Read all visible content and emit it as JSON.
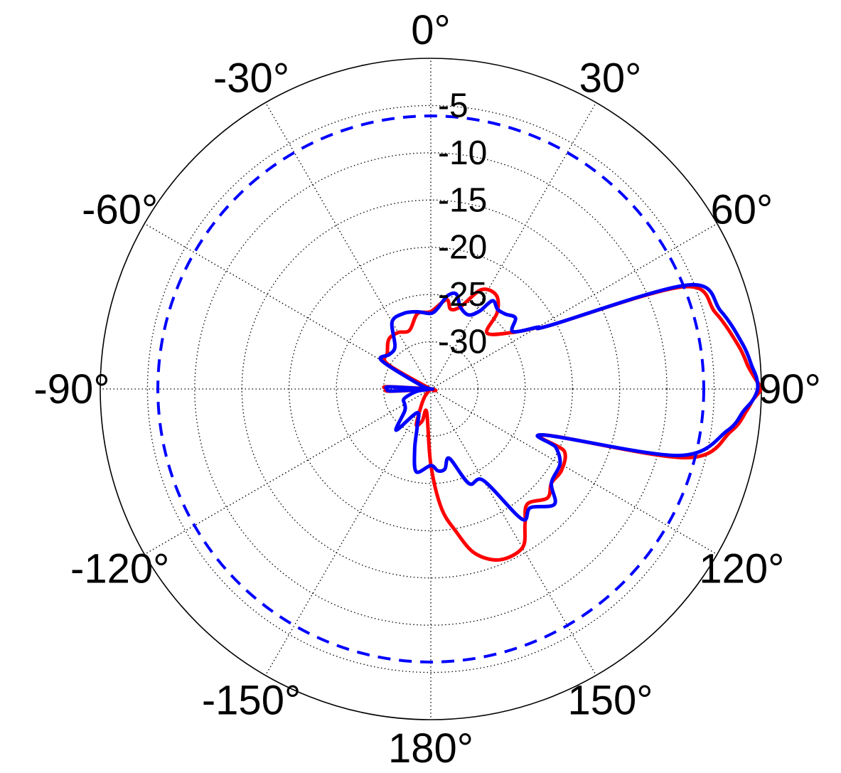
{
  "chart_data": {
    "type": "polar",
    "title": "",
    "angle_unit": "deg",
    "angle_zero": "top",
    "angle_direction": "clockwise",
    "angle_ticks": [
      "0°",
      "30°",
      "60°",
      "90°",
      "120°",
      "150°",
      "180°",
      "-150°",
      "-120°",
      "-90°",
      "-60°",
      "-30°"
    ],
    "angle_tick_values": [
      0,
      30,
      60,
      90,
      120,
      150,
      180,
      -150,
      -120,
      -90,
      -60,
      -30
    ],
    "radial_range": [
      -35,
      0
    ],
    "radial_ticks": [
      -35,
      -30,
      -25,
      -20,
      -15,
      -10,
      -5,
      0
    ],
    "radial_tick_labels": [
      "-5",
      "-10",
      "-15",
      "-20",
      "-25",
      "-30"
    ],
    "radial_tick_label_values": [
      -5,
      -10,
      -15,
      -20,
      -25,
      -30
    ],
    "grid": true,
    "grid_style": "dotted",
    "legend": "none",
    "series": [
      {
        "color": "#ff0000",
        "style": "solid",
        "theta": [
          0,
          10,
          14,
          20,
          27,
          35,
          41,
          45,
          55,
          60,
          62,
          68,
          75,
          82,
          86,
          88,
          90,
          92,
          94,
          98,
          105,
          112,
          115,
          122,
          128,
          133,
          140,
          145,
          150,
          158,
          165,
          170,
          175,
          180,
          -170,
          -165,
          -158,
          -150,
          -140,
          -132,
          -126,
          -115,
          -105,
          -98,
          -93,
          -90,
          -87,
          -80,
          -70,
          -60,
          -50,
          -40,
          -30,
          -20,
          -10
        ],
        "r": [
          -26.8,
          -25.4,
          -26.3,
          -25.7,
          -23.2,
          -22.9,
          -24.3,
          -26.6,
          -24.6,
          -22.0,
          -20.6,
          -6.1,
          -3.8,
          -2.1,
          -1.3,
          -0.7,
          -0.1,
          -0.9,
          -1.5,
          -2.9,
          -6.9,
          -22.0,
          -19.4,
          -18.7,
          -18.8,
          -18.1,
          -19.1,
          -17.6,
          -15.6,
          -15.5,
          -17.0,
          -19.7,
          -22.4,
          -27.0,
          -32.5,
          -31.5,
          -30.9,
          -33.0,
          -34.1,
          -34.9,
          -35.0,
          -34.9,
          -34.5,
          -34.5,
          -30.6,
          -30.3,
          -30.4,
          -35.0,
          -34.9,
          -29.7,
          -29.0,
          -28.1,
          -28.1,
          -28.4,
          -26.9
        ]
      },
      {
        "color": "#0000ff",
        "style": "solid",
        "theta": [
          0,
          5,
          10,
          15,
          20,
          27,
          32,
          35,
          40,
          45,
          50,
          55,
          60,
          62,
          68,
          75,
          82,
          86,
          88,
          90,
          92,
          94,
          98,
          105,
          112,
          115,
          120,
          128,
          133,
          140,
          145,
          150,
          158,
          165,
          170,
          175,
          180,
          -170,
          -165,
          -160,
          -150,
          -140,
          -130,
          -120,
          -110,
          -100,
          -95,
          -93,
          -90,
          -87,
          -80,
          -70,
          -60,
          -50,
          -40,
          -30,
          -20,
          -10
        ],
        "r": [
          -27.0,
          -26.4,
          -25.0,
          -24.6,
          -25.8,
          -26.2,
          -25.3,
          -23.6,
          -24.0,
          -23.8,
          -23.3,
          -24.4,
          -21.9,
          -20.6,
          -5.6,
          -3.2,
          -1.6,
          -0.9,
          -0.5,
          -0.4,
          -0.9,
          -1.8,
          -3.3,
          -7.8,
          -22.0,
          -20.4,
          -19.2,
          -18.8,
          -17.1,
          -18.6,
          -18.2,
          -23.8,
          -24.2,
          -27.4,
          -26.4,
          -26.3,
          -26.9,
          -26.1,
          -28.4,
          -30.8,
          -32.1,
          -29.3,
          -31.4,
          -31.8,
          -32.0,
          -33.4,
          -34.7,
          -30.9,
          -30.4,
          -30.7,
          -35.0,
          -33.9,
          -29.0,
          -29.3,
          -29.1,
          -26.8,
          -26.5,
          -26.7
        ]
      },
      {
        "color": "#0000ff",
        "style": "dashed",
        "theta": [
          0,
          90,
          180,
          -90
        ],
        "r": [
          -6.1,
          -6.1,
          -6.1,
          -6.1
        ]
      }
    ]
  }
}
